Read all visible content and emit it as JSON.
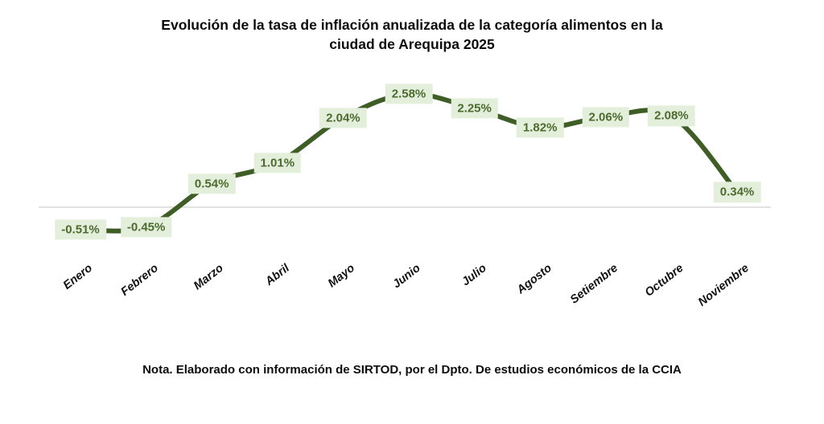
{
  "title_lines": [
    "Evolución de la tasa de inflación anualizada de la categoría alimentos en la",
    "ciudad de Arequipa 2025"
  ],
  "note": "Nota. Elaborado con información de SIRTOD, por el Dpto. De estudios económicos de la CCIA",
  "colors": {
    "line": "#3f5e26",
    "data_label_background": "#e3efda",
    "data_label_text": "#4c6b2f",
    "axis_line": "#d9d9d9",
    "text": "#0d0d0d"
  },
  "chart_data": {
    "type": "line",
    "smoothed": true,
    "title": "Evolución de la tasa de inflación anualizada de la categoría alimentos en la ciudad de Arequipa 2025",
    "categories": [
      "Enero",
      "Febrero",
      "Marzo",
      "Abril",
      "Mayo",
      "Junio",
      "Julio",
      "Agosto",
      "Setiembre",
      "Octubre",
      "Noviembre"
    ],
    "values": [
      -0.51,
      -0.45,
      0.54,
      1.01,
      2.04,
      2.58,
      2.25,
      1.82,
      2.06,
      2.08,
      0.34
    ],
    "labels": [
      "-0.51%",
      "-0.45%",
      "0.54%",
      "1.01%",
      "2.04%",
      "2.58%",
      "2.25%",
      "1.82%",
      "2.06%",
      "2.08%",
      "0.34%"
    ],
    "xlabel": "",
    "ylabel": "",
    "unit": "%",
    "ylim": [
      -1,
      3
    ],
    "grid": false,
    "legend": false,
    "zero_axis_line": true,
    "data_labels_visible": true
  }
}
